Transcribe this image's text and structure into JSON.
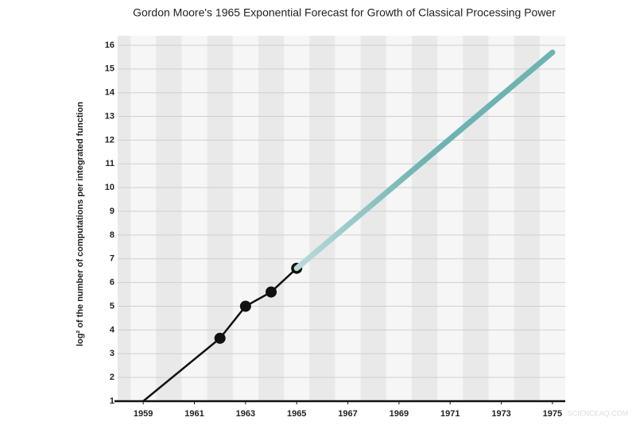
{
  "chart_data": {
    "type": "line",
    "title": "Gordon Moore's 1965 Exponential Forecast for Growth of Classical Processing Power",
    "y_label": "log² of the number of computations per integrated function",
    "watermark": "SCIENCEAQ.COM",
    "xlim": [
      1958,
      1975.5
    ],
    "xticks": [
      1959,
      1961,
      1963,
      1965,
      1967,
      1969,
      1971,
      1973,
      1975
    ],
    "ylim": [
      1,
      16.4
    ],
    "yticks": [
      1,
      2,
      3,
      4,
      5,
      6,
      7,
      8,
      9,
      10,
      11,
      12,
      13,
      14,
      15,
      16
    ],
    "grid": true,
    "stripes": true,
    "series": [
      {
        "color": "#111111",
        "x": [
          1959,
          1962,
          1963,
          1964,
          1965
        ],
        "values": [
          1,
          3.65,
          5,
          5.6,
          6.6
        ],
        "markers": [
          false,
          true,
          true,
          true,
          true
        ]
      },
      {
        "color": "#6db3b1",
        "start_color": "#b9dbda",
        "x": [
          1965,
          1975
        ],
        "values": [
          6.6,
          15.7
        ]
      }
    ]
  }
}
